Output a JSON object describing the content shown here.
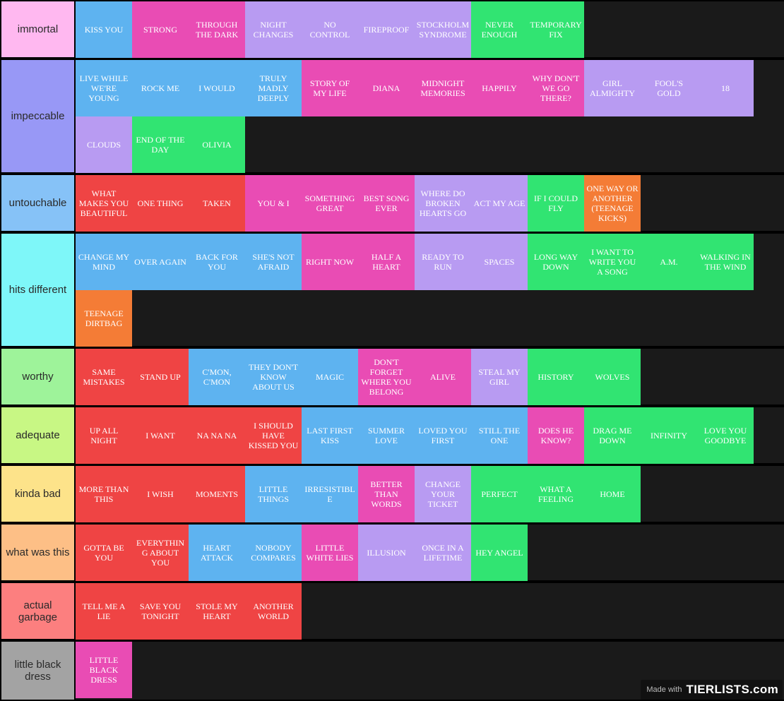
{
  "colors": {
    "blue": "#5eb3f0",
    "pink": "#e94cb4",
    "purple": "#b89bf2",
    "green": "#31e472",
    "red": "#ef4444",
    "orange": "#f47c36"
  },
  "tiers": [
    {
      "label": "immortal",
      "color": "#ffb8f0",
      "items": [
        {
          "text": "KISS YOU",
          "color": "blue"
        },
        {
          "text": "STRONG",
          "color": "pink"
        },
        {
          "text": "THROUGH THE DARK",
          "color": "pink"
        },
        {
          "text": "NIGHT CHANGES",
          "color": "purple"
        },
        {
          "text": "NO CONTROL",
          "color": "purple"
        },
        {
          "text": "FIREPROOF",
          "color": "purple"
        },
        {
          "text": "STOCKHOLM SYNDROME",
          "color": "purple"
        },
        {
          "text": "NEVER ENOUGH",
          "color": "green"
        },
        {
          "text": "TEMPORARY FIX",
          "color": "green"
        }
      ]
    },
    {
      "label": "impeccable",
      "color": "#9898f6",
      "items": [
        {
          "text": "LIVE WHILE WE'RE YOUNG",
          "color": "blue"
        },
        {
          "text": "ROCK ME",
          "color": "blue"
        },
        {
          "text": "I WOULD",
          "color": "blue"
        },
        {
          "text": "TRULY MADLY DEEPLY",
          "color": "blue"
        },
        {
          "text": "STORY OF MY LIFE",
          "color": "pink"
        },
        {
          "text": "DIANA",
          "color": "pink"
        },
        {
          "text": "MIDNIGHT MEMORIES",
          "color": "pink"
        },
        {
          "text": "HAPPILY",
          "color": "pink"
        },
        {
          "text": "WHY DON'T WE GO THERE?",
          "color": "pink"
        },
        {
          "text": "GIRL ALMIGHTY",
          "color": "purple"
        },
        {
          "text": "FOOL'S GOLD",
          "color": "purple"
        },
        {
          "text": "18",
          "color": "purple"
        },
        {
          "text": "CLOUDS",
          "color": "purple"
        },
        {
          "text": "END OF THE DAY",
          "color": "green"
        },
        {
          "text": "OLIVIA",
          "color": "green"
        }
      ]
    },
    {
      "label": "untouchable",
      "color": "#86c2f7",
      "items": [
        {
          "text": "WHAT MAKES YOU BEAUTIFUL",
          "color": "red"
        },
        {
          "text": "ONE THING",
          "color": "red"
        },
        {
          "text": "TAKEN",
          "color": "red"
        },
        {
          "text": "YOU & I",
          "color": "pink"
        },
        {
          "text": "SOMETHING GREAT",
          "color": "pink"
        },
        {
          "text": "BEST SONG EVER",
          "color": "pink"
        },
        {
          "text": "WHERE DO BROKEN HEARTS GO",
          "color": "purple"
        },
        {
          "text": "ACT MY AGE",
          "color": "purple"
        },
        {
          "text": "IF I COULD FLY",
          "color": "green"
        },
        {
          "text": "ONE WAY OR ANOTHER (TEENAGE KICKS)",
          "color": "orange"
        }
      ]
    },
    {
      "label": "hits different",
      "color": "#7ef7f9",
      "items": [
        {
          "text": "CHANGE MY MIND",
          "color": "blue"
        },
        {
          "text": "OVER AGAIN",
          "color": "blue"
        },
        {
          "text": "BACK FOR YOU",
          "color": "blue"
        },
        {
          "text": "SHE'S NOT AFRAID",
          "color": "blue"
        },
        {
          "text": "RIGHT NOW",
          "color": "pink"
        },
        {
          "text": "HALF A HEART",
          "color": "pink"
        },
        {
          "text": "READY TO RUN",
          "color": "purple"
        },
        {
          "text": "SPACES",
          "color": "purple"
        },
        {
          "text": "LONG WAY DOWN",
          "color": "green"
        },
        {
          "text": "I WANT TO WRITE YOU A SONG",
          "color": "green"
        },
        {
          "text": "A.M.",
          "color": "green"
        },
        {
          "text": "WALKING IN THE WIND",
          "color": "green"
        },
        {
          "text": "TEENAGE DIRTBAG",
          "color": "orange"
        }
      ]
    },
    {
      "label": "worthy",
      "color": "#9ef39a",
      "items": [
        {
          "text": "SAME MISTAKES",
          "color": "red"
        },
        {
          "text": "STAND UP",
          "color": "red"
        },
        {
          "text": "C'MON, C'MON",
          "color": "blue"
        },
        {
          "text": "THEY DON'T KNOW ABOUT US",
          "color": "blue"
        },
        {
          "text": "MAGIC",
          "color": "blue"
        },
        {
          "text": "DON'T FORGET WHERE YOU BELONG",
          "color": "pink"
        },
        {
          "text": "ALIVE",
          "color": "pink"
        },
        {
          "text": "STEAL MY GIRL",
          "color": "purple"
        },
        {
          "text": "HISTORY",
          "color": "green"
        },
        {
          "text": "WOLVES",
          "color": "green"
        }
      ]
    },
    {
      "label": "adequate",
      "color": "#c8f784",
      "items": [
        {
          "text": "UP ALL NIGHT",
          "color": "red"
        },
        {
          "text": "I WANT",
          "color": "red"
        },
        {
          "text": "NA NA NA",
          "color": "red"
        },
        {
          "text": "I SHOULD HAVE KISSED YOU",
          "color": "red"
        },
        {
          "text": "LAST FIRST KISS",
          "color": "blue"
        },
        {
          "text": "SUMMER LOVE",
          "color": "blue"
        },
        {
          "text": "LOVED YOU FIRST",
          "color": "blue"
        },
        {
          "text": "STILL THE ONE",
          "color": "blue"
        },
        {
          "text": "DOES HE KNOW?",
          "color": "pink"
        },
        {
          "text": "DRAG ME DOWN",
          "color": "green"
        },
        {
          "text": "INFINITY",
          "color": "green"
        },
        {
          "text": "LOVE YOU GOODBYE",
          "color": "green"
        }
      ]
    },
    {
      "label": "kinda bad",
      "color": "#fde38a",
      "items": [
        {
          "text": "MORE THAN THIS",
          "color": "red"
        },
        {
          "text": "I WISH",
          "color": "red"
        },
        {
          "text": "MOMENTS",
          "color": "red"
        },
        {
          "text": "LITTLE THINGS",
          "color": "blue"
        },
        {
          "text": "IRRESISTIBLE",
          "color": "blue"
        },
        {
          "text": "BETTER THAN WORDS",
          "color": "pink"
        },
        {
          "text": "CHANGE YOUR TICKET",
          "color": "purple"
        },
        {
          "text": "PERFECT",
          "color": "green"
        },
        {
          "text": "WHAT A FEELING",
          "color": "green"
        },
        {
          "text": "HOME",
          "color": "green"
        }
      ]
    },
    {
      "label": "what was this",
      "color": "#fdbf86",
      "items": [
        {
          "text": "GOTTA BE YOU",
          "color": "red"
        },
        {
          "text": "EVERYTHING ABOUT YOU",
          "color": "red"
        },
        {
          "text": "HEART ATTACK",
          "color": "blue"
        },
        {
          "text": "NOBODY COMPARES",
          "color": "blue"
        },
        {
          "text": "LITTLE WHITE LIES",
          "color": "pink"
        },
        {
          "text": "ILLUSION",
          "color": "purple"
        },
        {
          "text": "ONCE IN A LIFETIME",
          "color": "purple"
        },
        {
          "text": "HEY ANGEL",
          "color": "green"
        }
      ]
    },
    {
      "label": "actual garbage",
      "color": "#fc7f7f",
      "items": [
        {
          "text": "TELL ME A LIE",
          "color": "red"
        },
        {
          "text": "SAVE YOU TONIGHT",
          "color": "red"
        },
        {
          "text": "STOLE MY HEART",
          "color": "red"
        },
        {
          "text": "ANOTHER WORLD",
          "color": "red"
        }
      ]
    },
    {
      "label": "little black dress",
      "color": "#a3a3a3",
      "items": [
        {
          "text": "LITTLE BLACK DRESS",
          "color": "pink"
        }
      ]
    }
  ],
  "watermark": {
    "made_with": "Made with",
    "logo": "TIERLISTS.com"
  }
}
